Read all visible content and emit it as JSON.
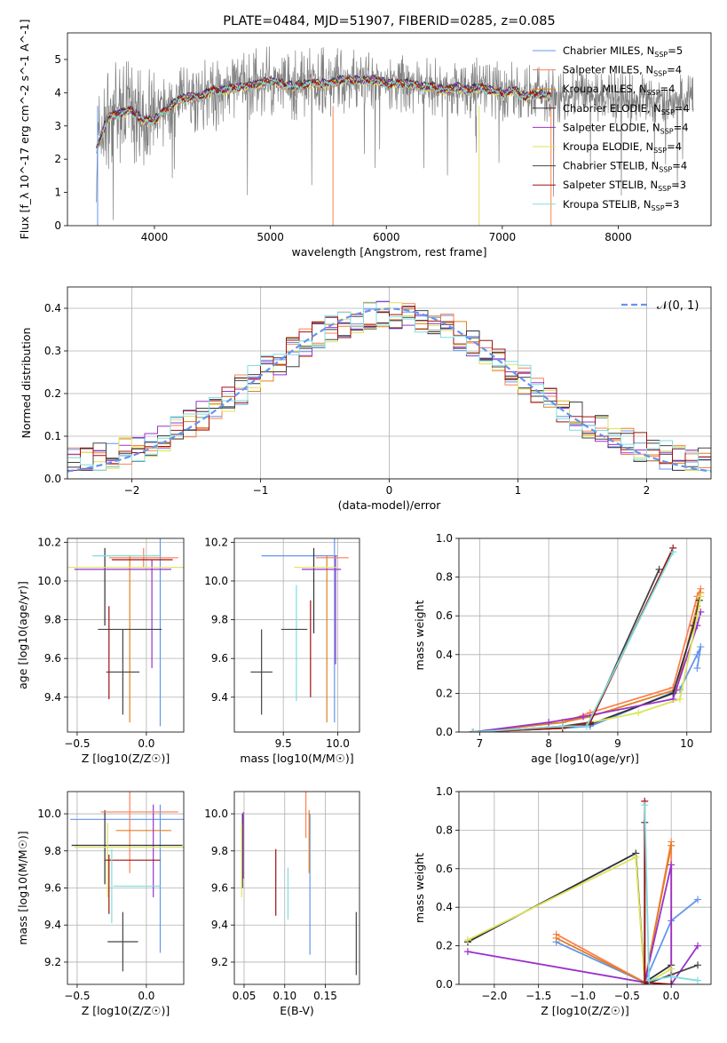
{
  "colors": [
    "#6495ED",
    "#FF7F50",
    "#E08020",
    "#30303A",
    "#9932CC",
    "#DDE35A",
    "#444444",
    "#A01010",
    "#7FDDDD"
  ],
  "chart_data": [
    {
      "id": "spectrum",
      "type": "line",
      "title": "PLATE=0484, MJD=51907, FIBERID=0285, z=0.085",
      "xlabel": "wavelength [Angstrom, rest frame]",
      "ylabel": "Flux [f_λ 10^-17 erg cm^-2 s^-1 A^-1]",
      "xlim": [
        3250,
        8800
      ],
      "ylim": [
        0,
        5.8
      ],
      "xticks": [
        "4000",
        "5000",
        "6000",
        "7000",
        "8000"
      ],
      "yticks": [
        "0",
        "1",
        "2",
        "3",
        "4",
        "5"
      ],
      "x": [
        3500,
        3600,
        3700,
        3800,
        3900,
        4000,
        4100,
        4200,
        4300,
        4400,
        4500,
        4600,
        4700,
        4800,
        4900,
        5000,
        5100,
        5200,
        5300,
        5400,
        5500,
        5600,
        5700,
        5800,
        5900,
        6000,
        6100,
        6200,
        6300,
        6400,
        6500,
        6600,
        6700,
        6800,
        6900,
        7000,
        7100,
        7200,
        7300,
        7400
      ],
      "model": [
        2.3,
        3.3,
        3.4,
        3.5,
        3.2,
        3.2,
        3.5,
        3.8,
        3.9,
        3.9,
        4.1,
        4.1,
        4.2,
        4.2,
        4.3,
        4.4,
        4.3,
        4.2,
        4.3,
        4.3,
        4.3,
        4.4,
        4.4,
        4.4,
        4.4,
        4.3,
        4.3,
        4.3,
        4.2,
        4.2,
        4.1,
        4.2,
        4.1,
        4.2,
        4.1,
        4.0,
        4.1,
        3.9,
        4.0,
        3.9
      ],
      "data_line_name": "",
      "legend": [
        "Chabrier MILES, N_SSP=5",
        "Salpeter MILES, N_SSP=4",
        "Kroupa MILES, N_SSP=4",
        "Chabrier ELODIE, N_SSP=4",
        "Salpeter ELODIE, N_SSP=4",
        "Kroupa ELODIE, N_SSP=4",
        "Chabrier STELIB, N_SSP=4",
        "Salpeter STELIB, N_SSP=3",
        "Kroupa STELIB, N_SSP=3"
      ],
      "legend_placement": "right"
    },
    {
      "id": "residuals",
      "type": "histogram",
      "xlabel": "(data-model)/error",
      "ylabel": "Normed distribution",
      "xlim": [
        -2.5,
        2.5
      ],
      "ylim": [
        0,
        0.45
      ],
      "xticks": [
        "−2",
        "−1",
        "0",
        "1",
        "2"
      ],
      "yticks": [
        "0.0",
        "0.1",
        "0.2",
        "0.3",
        "0.4"
      ],
      "bin_width": 0.1,
      "legend": "𝒩(0, 1)",
      "legend_placement": "top-right",
      "curve": "gaussian mean 0 sigma 1"
    },
    {
      "id": "z-age",
      "type": "errorbar",
      "xlabel": "Z [log10(Z/Z☉)]",
      "ylabel": "age  [log10(age/yr)]",
      "xlim": [
        -0.57,
        0.27
      ],
      "ylim": [
        9.22,
        10.22
      ],
      "xticks": [
        "−0.5",
        "0.0"
      ],
      "yticks": [
        "9.4",
        "9.6",
        "9.8",
        "10.0",
        "10.2"
      ],
      "points": [
        {
          "x": 0.1,
          "y": 9.75,
          "xerr": 0.0,
          "yerr": 0.5,
          "c": 0
        },
        {
          "x": -0.02,
          "y": 10.12,
          "xerr": 0.25,
          "yerr": 0.05,
          "c": 1
        },
        {
          "x": -0.12,
          "y": 9.7,
          "xerr": 0.0,
          "yerr": 0.43,
          "c": 2
        },
        {
          "x": -0.3,
          "y": 9.97,
          "xerr": 0.0,
          "yerr": 0.2,
          "c": 3
        },
        {
          "x": 0.04,
          "y": 9.83,
          "xerr": 0.0,
          "yerr": 0.28,
          "c": 4
        },
        {
          "x": -0.12,
          "y": 10.07,
          "xerr": 0.45,
          "yerr": 0.0,
          "c": 5
        },
        {
          "x": -0.17,
          "y": 9.53,
          "xerr": 0.12,
          "yerr": 0.22,
          "c": 6
        },
        {
          "x": -0.27,
          "y": 9.63,
          "xerr": 0.0,
          "yerr": 0.24,
          "c": 7
        },
        {
          "x": -0.14,
          "y": 10.13,
          "xerr": 0.25,
          "yerr": 0.0,
          "c": 8
        },
        {
          "x": -0.12,
          "y": 9.75,
          "xerr": 0.23,
          "yerr": 0.0,
          "c": 6
        },
        {
          "x": -0.17,
          "y": 10.06,
          "xerr": 0.35,
          "yerr": 0.0,
          "c": 4
        },
        {
          "x": -0.03,
          "y": 10.11,
          "xerr": 0.22,
          "yerr": 0.0,
          "c": 7
        }
      ]
    },
    {
      "id": "mass-age",
      "type": "errorbar",
      "xlabel": "mass [log10(M/M☉)]",
      "ylabel": "",
      "xlim": [
        9.05,
        10.2
      ],
      "ylim": [
        9.22,
        10.22
      ],
      "xticks": [
        "9.5",
        "10.0"
      ],
      "yticks": [
        "9.4",
        "9.6",
        "9.8",
        "10.0",
        "10.2"
      ],
      "points": [
        {
          "x": 9.97,
          "y": 9.75,
          "xerr": 0.0,
          "yerr": 0.48,
          "c": 0
        },
        {
          "x": 9.65,
          "y": 10.13,
          "xerr": 0.35,
          "yerr": 0.0,
          "c": 0
        },
        {
          "x": 9.9,
          "y": 9.7,
          "xerr": 0.0,
          "yerr": 0.43,
          "c": 2
        },
        {
          "x": 9.78,
          "y": 9.95,
          "xerr": 0.0,
          "yerr": 0.22,
          "c": 3
        },
        {
          "x": 9.98,
          "y": 9.85,
          "xerr": 0.0,
          "yerr": 0.28,
          "c": 4
        },
        {
          "x": 9.8,
          "y": 10.07,
          "xerr": 0.2,
          "yerr": 0.0,
          "c": 5
        },
        {
          "x": 9.3,
          "y": 9.53,
          "xerr": 0.1,
          "yerr": 0.22,
          "c": 6
        },
        {
          "x": 9.75,
          "y": 9.65,
          "xerr": 0.0,
          "yerr": 0.25,
          "c": 7
        },
        {
          "x": 9.62,
          "y": 9.68,
          "xerr": 0.0,
          "yerr": 0.3,
          "c": 8
        },
        {
          "x": 9.6,
          "y": 9.75,
          "xerr": 0.12,
          "yerr": 0.0,
          "c": 6
        },
        {
          "x": 9.85,
          "y": 10.06,
          "xerr": 0.18,
          "yerr": 0.0,
          "c": 4
        },
        {
          "x": 9.95,
          "y": 10.12,
          "xerr": 0.15,
          "yerr": 0.0,
          "c": 1
        }
      ]
    },
    {
      "id": "age-weight",
      "type": "line",
      "xlabel": "age  [log10(age/yr)]",
      "ylabel": "mass weight",
      "xlim": [
        6.7,
        10.35
      ],
      "ylim": [
        0,
        1.0
      ],
      "xticks": [
        "7",
        "8",
        "9",
        "10"
      ],
      "yticks": [
        "0.0",
        "0.2",
        "0.4",
        "0.6",
        "0.8",
        "1.0"
      ],
      "series": [
        {
          "c": 0,
          "x": [
            6.9,
            8.2,
            8.6,
            9.9,
            10.15,
            10.2,
            10.15
          ],
          "y": [
            0.0,
            0.02,
            0.03,
            0.22,
            0.4,
            0.44,
            0.33
          ]
        },
        {
          "c": 1,
          "x": [
            6.9,
            8.2,
            8.6,
            9.8,
            10.15,
            10.2
          ],
          "y": [
            0.0,
            0.05,
            0.1,
            0.23,
            0.7,
            0.74
          ]
        },
        {
          "c": 2,
          "x": [
            6.9,
            8.2,
            8.6,
            9.85,
            10.15,
            10.2
          ],
          "y": [
            0.0,
            0.05,
            0.08,
            0.22,
            0.65,
            0.72
          ]
        },
        {
          "c": 3,
          "x": [
            6.9,
            8.2,
            8.6,
            9.8,
            10.1,
            10.18
          ],
          "y": [
            0.0,
            0.02,
            0.04,
            0.2,
            0.55,
            0.68
          ]
        },
        {
          "c": 4,
          "x": [
            6.9,
            8.0,
            8.5,
            9.8,
            10.15,
            10.2
          ],
          "y": [
            0.0,
            0.05,
            0.08,
            0.17,
            0.55,
            0.62
          ]
        },
        {
          "c": 5,
          "x": [
            6.9,
            8.2,
            9.3,
            9.9,
            10.15,
            10.2
          ],
          "y": [
            0.0,
            0.02,
            0.1,
            0.17,
            0.6,
            0.7
          ]
        },
        {
          "c": 6,
          "x": [
            6.9,
            8.2,
            8.6,
            9.6
          ],
          "y": [
            0.0,
            0.03,
            0.05,
            0.84
          ]
        },
        {
          "c": 7,
          "x": [
            6.9,
            8.2,
            8.6,
            9.8
          ],
          "y": [
            0.0,
            0.02,
            0.05,
            0.95
          ]
        },
        {
          "c": 8,
          "x": [
            6.9,
            8.2,
            8.55,
            9.8
          ],
          "y": [
            0.0,
            0.03,
            0.03,
            0.93
          ]
        }
      ]
    },
    {
      "id": "z-mass",
      "type": "errorbar",
      "xlabel": "Z [log10(Z/Z☉)]",
      "ylabel": "mass [log10(M/M☉)]",
      "xlim": [
        -0.57,
        0.27
      ],
      "ylim": [
        9.08,
        10.12
      ],
      "xticks": [
        "−0.5",
        "0.0"
      ],
      "yticks": [
        "9.2",
        "9.4",
        "9.6",
        "9.8",
        "10.0"
      ],
      "points": [
        {
          "x": 0.1,
          "y": 9.65,
          "xerr": 0.0,
          "yerr": 0.4,
          "c": 0
        },
        {
          "x": -0.05,
          "y": 9.97,
          "xerr": 0.5,
          "yerr": 0.0,
          "c": 0
        },
        {
          "x": -0.12,
          "y": 9.9,
          "xerr": 0.0,
          "yerr": 0.22,
          "c": 1
        },
        {
          "x": -0.02,
          "y": 9.91,
          "xerr": 0.2,
          "yerr": 0.0,
          "c": 2
        },
        {
          "x": -0.3,
          "y": 9.82,
          "xerr": 0.0,
          "yerr": 0.2,
          "c": 3
        },
        {
          "x": 0.05,
          "y": 9.8,
          "xerr": 0.0,
          "yerr": 0.25,
          "c": 4
        },
        {
          "x": -0.14,
          "y": 9.83,
          "xerr": 0.4,
          "yerr": 0.0,
          "c": 3
        },
        {
          "x": -0.28,
          "y": 9.75,
          "xerr": 0.0,
          "yerr": 0.2,
          "c": 5
        },
        {
          "x": -0.1,
          "y": 9.82,
          "xerr": 0.42,
          "yerr": 0.0,
          "c": 5
        },
        {
          "x": -0.17,
          "y": 9.31,
          "xerr": 0.11,
          "yerr": 0.16,
          "c": 6
        },
        {
          "x": -0.27,
          "y": 9.62,
          "xerr": 0.0,
          "yerr": 0.16,
          "c": 7
        },
        {
          "x": -0.1,
          "y": 9.75,
          "xerr": 0.2,
          "yerr": 0.0,
          "c": 7
        },
        {
          "x": -0.25,
          "y": 9.61,
          "xerr": 0.0,
          "yerr": 0.2,
          "c": 8
        },
        {
          "x": -0.07,
          "y": 9.61,
          "xerr": 0.17,
          "yerr": 0.0,
          "c": 8
        },
        {
          "x": -0.05,
          "y": 10.01,
          "xerr": 0.28,
          "yerr": 0.0,
          "c": 1
        }
      ]
    },
    {
      "id": "ebv-mass",
      "type": "errorbar",
      "xlabel": "E(B-V)",
      "ylabel": "",
      "xlim": [
        0.038,
        0.192
      ],
      "ylim": [
        9.08,
        10.12
      ],
      "xticks": [
        "0.05",
        "0.10",
        "0.15"
      ],
      "yticks": [
        "9.2",
        "9.4",
        "9.6",
        "9.8",
        "10.0"
      ],
      "points": [
        {
          "x": 0.131,
          "y": 9.62,
          "xerr": 0.0,
          "yerr": 0.38,
          "c": 0
        },
        {
          "x": 0.126,
          "y": 10.0,
          "xerr": 0.0,
          "yerr": 0.13,
          "c": 1
        },
        {
          "x": 0.13,
          "y": 9.85,
          "xerr": 0.0,
          "yerr": 0.17,
          "c": 2
        },
        {
          "x": 0.048,
          "y": 9.8,
          "xerr": 0.0,
          "yerr": 0.2,
          "c": 3
        },
        {
          "x": 0.049,
          "y": 9.83,
          "xerr": 0.0,
          "yerr": 0.18,
          "c": 4
        },
        {
          "x": 0.047,
          "y": 9.75,
          "xerr": 0.0,
          "yerr": 0.2,
          "c": 5
        },
        {
          "x": 0.188,
          "y": 9.3,
          "xerr": 0.0,
          "yerr": 0.17,
          "c": 6
        },
        {
          "x": 0.089,
          "y": 9.63,
          "xerr": 0.0,
          "yerr": 0.18,
          "c": 7
        },
        {
          "x": 0.104,
          "y": 9.57,
          "xerr": 0.0,
          "yerr": 0.14,
          "c": 8
        }
      ]
    },
    {
      "id": "z-weight",
      "type": "line",
      "xlabel": "Z [log10(Z/Z☉)]",
      "ylabel": "mass weight",
      "xlim": [
        -2.4,
        0.45
      ],
      "ylim": [
        0,
        1.0
      ],
      "xticks": [
        "−2.0",
        "−1.5",
        "−1.0",
        "−0.5",
        "0.0"
      ],
      "yticks": [
        "0.0",
        "0.2",
        "0.4",
        "0.6",
        "0.8",
        "1.0"
      ],
      "series": [
        {
          "c": 0,
          "x": [
            -1.3,
            -0.3,
            0.0,
            0.3
          ],
          "y": [
            0.22,
            0.01,
            0.33,
            0.44
          ]
        },
        {
          "c": 1,
          "x": [
            -1.3,
            -0.3,
            0.0,
            0.0
          ],
          "y": [
            0.26,
            0.01,
            0.74,
            0.05
          ]
        },
        {
          "c": 2,
          "x": [
            -1.3,
            -0.3,
            0.0
          ],
          "y": [
            0.24,
            0.01,
            0.72
          ]
        },
        {
          "c": 3,
          "x": [
            -2.3,
            -0.4,
            -0.3,
            0.0
          ],
          "y": [
            0.22,
            0.68,
            0.01,
            0.1
          ]
        },
        {
          "c": 4,
          "x": [
            -2.3,
            -0.3,
            0.0,
            0.0,
            0.3
          ],
          "y": [
            0.17,
            0.01,
            0.62,
            0.0,
            0.2
          ]
        },
        {
          "c": 5,
          "x": [
            -2.3,
            -0.4,
            -0.3,
            0.0
          ],
          "y": [
            0.23,
            0.66,
            0.0,
            0.08
          ]
        },
        {
          "c": 6,
          "x": [
            -0.3,
            -0.3,
            0.3
          ],
          "y": [
            0.84,
            0.0,
            0.1
          ]
        },
        {
          "c": 7,
          "x": [
            -0.3,
            -0.3,
            0.0
          ],
          "y": [
            0.95,
            0.01,
            0.0
          ]
        },
        {
          "c": 8,
          "x": [
            -0.3,
            -0.25,
            0.0,
            0.3
          ],
          "y": [
            0.93,
            0.02,
            0.04,
            0.02
          ]
        }
      ]
    }
  ]
}
